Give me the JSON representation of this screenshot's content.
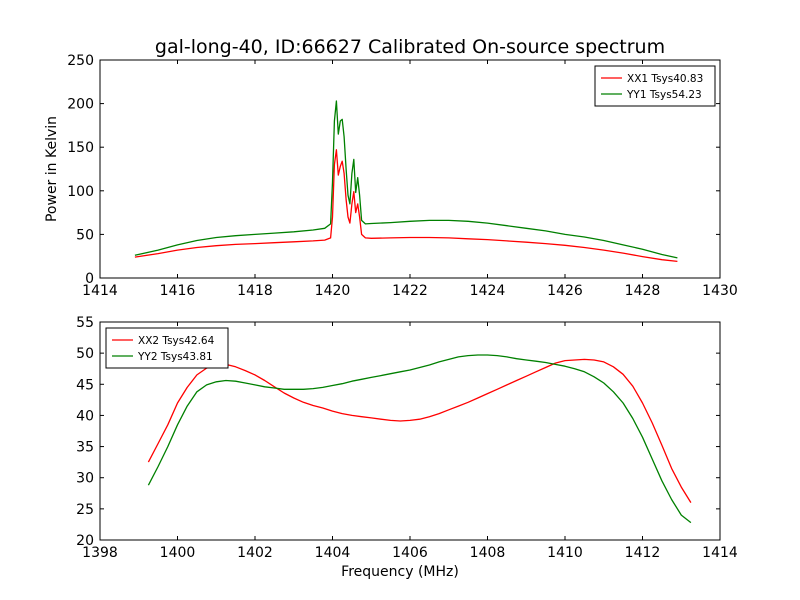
{
  "figure": {
    "title": "gal-long-40, ID:66627 Calibrated On-source spectrum"
  },
  "chart_data": [
    {
      "type": "line",
      "title": "gal-long-40, ID:66627 Calibrated On-source spectrum",
      "xlabel": "",
      "ylabel": "Power in Kelvin",
      "xlim": [
        1414,
        1430
      ],
      "ylim": [
        0,
        250
      ],
      "xticks": [
        1414,
        1416,
        1418,
        1420,
        1422,
        1424,
        1426,
        1428,
        1430
      ],
      "yticks": [
        0,
        50,
        100,
        150,
        200,
        250
      ],
      "legend": "top-right",
      "grid": false,
      "series": [
        {
          "name": "XX1 Tsys40.83",
          "color": "#ff0000",
          "x": [
            1414.9,
            1415.5,
            1416.0,
            1416.5,
            1417.0,
            1417.5,
            1418.0,
            1418.5,
            1419.0,
            1419.5,
            1419.8,
            1419.95,
            1420.0,
            1420.05,
            1420.1,
            1420.15,
            1420.2,
            1420.25,
            1420.3,
            1420.35,
            1420.4,
            1420.45,
            1420.5,
            1420.55,
            1420.6,
            1420.65,
            1420.7,
            1420.75,
            1420.85,
            1421.0,
            1421.5,
            1422.0,
            1422.5,
            1423.0,
            1423.5,
            1424.0,
            1424.5,
            1425.0,
            1425.5,
            1426.0,
            1426.5,
            1427.0,
            1427.5,
            1428.0,
            1428.5,
            1428.9
          ],
          "values": [
            24,
            28,
            32,
            35,
            37,
            38.5,
            39.5,
            40.5,
            41.5,
            42.5,
            43.5,
            46,
            70,
            130,
            147,
            118,
            128,
            134,
            120,
            90,
            70,
            63,
            85,
            99,
            75,
            85,
            70,
            50,
            46,
            45.5,
            46,
            46.5,
            46.5,
            46,
            45,
            44,
            42.5,
            41,
            39.5,
            37.5,
            35,
            32,
            28.5,
            24.5,
            21,
            19
          ]
        },
        {
          "name": "YY1 Tsys54.23",
          "color": "#008000",
          "x": [
            1414.9,
            1415.5,
            1416.0,
            1416.5,
            1417.0,
            1417.5,
            1418.0,
            1418.5,
            1419.0,
            1419.5,
            1419.8,
            1419.95,
            1420.0,
            1420.05,
            1420.1,
            1420.15,
            1420.2,
            1420.25,
            1420.3,
            1420.35,
            1420.4,
            1420.45,
            1420.5,
            1420.55,
            1420.6,
            1420.65,
            1420.7,
            1420.75,
            1420.85,
            1421.0,
            1421.5,
            1422.0,
            1422.5,
            1423.0,
            1423.5,
            1424.0,
            1424.5,
            1425.0,
            1425.5,
            1426.0,
            1426.5,
            1427.0,
            1427.5,
            1428.0,
            1428.5,
            1428.9
          ],
          "values": [
            26,
            32,
            38,
            43,
            46.5,
            48.5,
            50,
            51.5,
            53,
            55,
            57,
            62,
            110,
            180,
            203,
            165,
            180,
            182,
            162,
            125,
            95,
            85,
            120,
            136,
            98,
            115,
            95,
            66,
            62,
            62.5,
            63.5,
            65,
            66,
            66,
            65,
            63,
            60,
            57,
            54,
            50,
            47,
            43,
            38,
            33,
            27,
            23
          ]
        }
      ]
    },
    {
      "type": "line",
      "title": "",
      "xlabel": "Frequency (MHz)",
      "ylabel": "",
      "xlim": [
        1398,
        1414
      ],
      "ylim": [
        20,
        55
      ],
      "xticks": [
        1398,
        1400,
        1402,
        1404,
        1406,
        1408,
        1410,
        1412,
        1414
      ],
      "yticks": [
        20,
        25,
        30,
        35,
        40,
        45,
        50,
        55
      ],
      "legend": "top-left",
      "grid": false,
      "series": [
        {
          "name": "XX2 Tsys42.64",
          "color": "#ff0000",
          "x": [
            1399.25,
            1399.5,
            1399.75,
            1400.0,
            1400.25,
            1400.5,
            1400.75,
            1401.0,
            1401.25,
            1401.5,
            1401.75,
            1402.0,
            1402.25,
            1402.5,
            1402.75,
            1403.0,
            1403.25,
            1403.5,
            1403.75,
            1404.0,
            1404.25,
            1404.5,
            1404.75,
            1405.0,
            1405.25,
            1405.5,
            1405.75,
            1406.0,
            1406.25,
            1406.5,
            1406.75,
            1407.0,
            1407.25,
            1407.5,
            1407.75,
            1408.0,
            1408.25,
            1408.5,
            1408.75,
            1409.0,
            1409.25,
            1409.5,
            1409.75,
            1410.0,
            1410.25,
            1410.5,
            1410.75,
            1411.0,
            1411.25,
            1411.5,
            1411.75,
            1412.0,
            1412.25,
            1412.5,
            1412.75,
            1413.0,
            1413.25
          ],
          "values": [
            32.5,
            35.5,
            38.5,
            42,
            44.5,
            46.5,
            47.6,
            48.1,
            48.2,
            47.8,
            47.2,
            46.5,
            45.6,
            44.6,
            43.6,
            42.8,
            42.1,
            41.6,
            41.2,
            40.7,
            40.3,
            40.0,
            39.8,
            39.6,
            39.4,
            39.2,
            39.1,
            39.2,
            39.4,
            39.8,
            40.3,
            40.9,
            41.5,
            42.1,
            42.8,
            43.5,
            44.2,
            44.9,
            45.6,
            46.3,
            47.0,
            47.7,
            48.4,
            48.8,
            48.9,
            49.0,
            48.9,
            48.6,
            47.8,
            46.6,
            44.7,
            42.0,
            38.8,
            35.2,
            31.5,
            28.5,
            26.0
          ]
        },
        {
          "name": "YY2 Tsys43.81",
          "color": "#008000",
          "x": [
            1399.25,
            1399.5,
            1399.75,
            1400.0,
            1400.25,
            1400.5,
            1400.75,
            1401.0,
            1401.25,
            1401.5,
            1401.75,
            1402.0,
            1402.25,
            1402.5,
            1402.75,
            1403.0,
            1403.25,
            1403.5,
            1403.75,
            1404.0,
            1404.25,
            1404.5,
            1404.75,
            1405.0,
            1405.25,
            1405.5,
            1405.75,
            1406.0,
            1406.25,
            1406.5,
            1406.75,
            1407.0,
            1407.25,
            1407.5,
            1407.75,
            1408.0,
            1408.25,
            1408.5,
            1408.75,
            1409.0,
            1409.25,
            1409.5,
            1409.75,
            1410.0,
            1410.25,
            1410.5,
            1410.75,
            1411.0,
            1411.25,
            1411.5,
            1411.75,
            1412.0,
            1412.25,
            1412.5,
            1412.75,
            1413.0,
            1413.25
          ],
          "values": [
            28.8,
            31.8,
            35.0,
            38.5,
            41.5,
            43.8,
            44.9,
            45.4,
            45.6,
            45.5,
            45.2,
            44.9,
            44.6,
            44.4,
            44.2,
            44.2,
            44.2,
            44.3,
            44.5,
            44.8,
            45.1,
            45.5,
            45.8,
            46.1,
            46.4,
            46.7,
            47.0,
            47.3,
            47.7,
            48.1,
            48.6,
            49.0,
            49.4,
            49.6,
            49.7,
            49.7,
            49.6,
            49.4,
            49.1,
            48.9,
            48.7,
            48.5,
            48.2,
            47.9,
            47.5,
            47.0,
            46.2,
            45.2,
            43.8,
            42.0,
            39.5,
            36.5,
            33.0,
            29.5,
            26.5,
            24.0,
            22.8
          ]
        }
      ]
    }
  ]
}
